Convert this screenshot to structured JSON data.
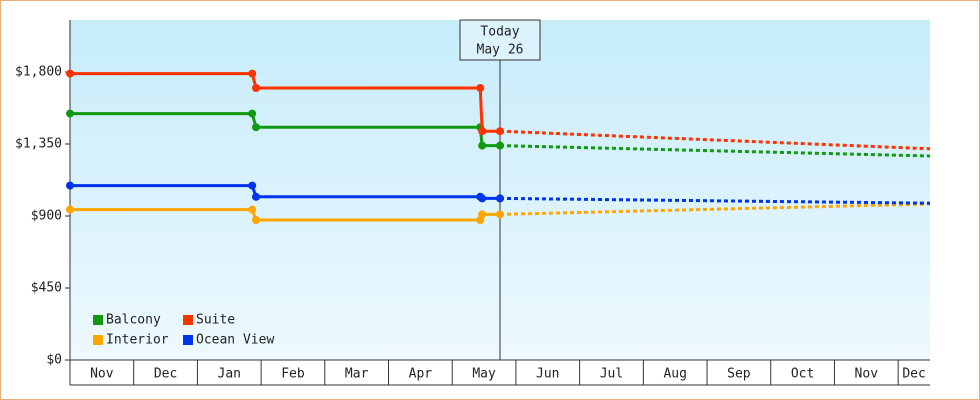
{
  "chart_data": {
    "type": "step-line",
    "categories": [
      "Nov",
      "Dec",
      "Jan",
      "Feb",
      "Mar",
      "Apr",
      "May",
      "Jun",
      "Jul",
      "Aug",
      "Sep",
      "Oct",
      "Nov",
      "Dec"
    ],
    "xlim": [
      0,
      13.5
    ],
    "ylim": [
      0,
      2125
    ],
    "yticks": [
      {
        "value": 0,
        "label": "$0"
      },
      {
        "value": 450,
        "label": "$450"
      },
      {
        "value": 900,
        "label": "$900"
      },
      {
        "value": 1350,
        "label": "$1,350"
      },
      {
        "value": 1800,
        "label": "$1,800"
      }
    ],
    "today": {
      "x": 6.75,
      "label": "Today",
      "date": "May 26"
    },
    "legend": "bottom-left",
    "series": [
      {
        "name": "Balcony",
        "color": "#119911",
        "x": [
          0,
          2.86,
          2.92,
          6.44,
          6.47,
          6.75
        ],
        "values": [
          1540,
          1540,
          1455,
          1455,
          1340,
          1340
        ],
        "forecast_x": [
          6.75,
          13.5
        ],
        "forecast_values": [
          1340,
          1275
        ]
      },
      {
        "name": "Suite",
        "color": "#ff3300",
        "x": [
          0,
          2.86,
          2.92,
          6.44,
          6.47,
          6.75
        ],
        "values": [
          1790,
          1790,
          1700,
          1700,
          1430,
          1430
        ],
        "forecast_x": [
          6.75,
          13.5
        ],
        "forecast_values": [
          1430,
          1320
        ]
      },
      {
        "name": "Interior",
        "color": "#ffa500",
        "x": [
          0,
          2.86,
          2.92,
          6.44,
          6.47,
          6.75
        ],
        "values": [
          940,
          940,
          875,
          875,
          910,
          910
        ],
        "forecast_x": [
          6.75,
          13.5
        ],
        "forecast_values": [
          910,
          975
        ]
      },
      {
        "name": "Ocean View",
        "color": "#0033ee",
        "x": [
          0,
          2.86,
          2.92,
          6.44,
          6.47,
          6.75
        ],
        "values": [
          1090,
          1090,
          1020,
          1020,
          1010,
          1010
        ],
        "forecast_x": [
          6.75,
          13.5
        ],
        "forecast_values": [
          1010,
          980
        ]
      }
    ]
  }
}
